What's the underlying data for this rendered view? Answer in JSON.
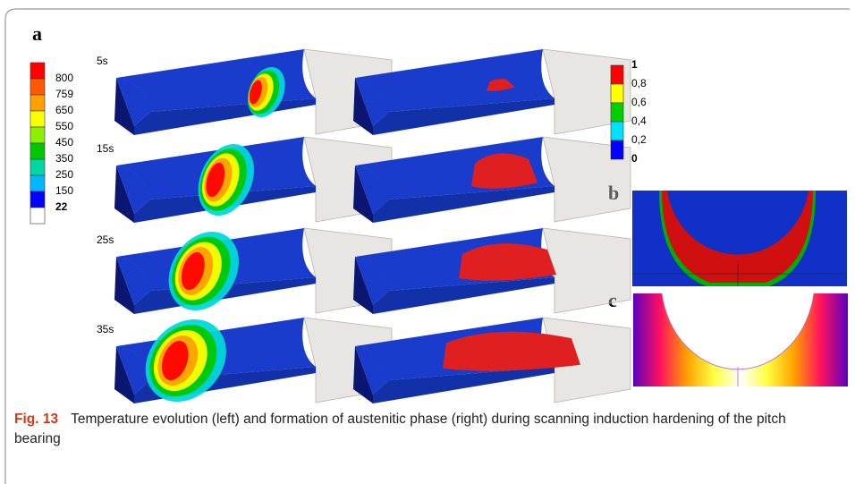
{
  "panel_labels": [
    "a",
    "b",
    "c"
  ],
  "time_labels": [
    "5s",
    "15s",
    "25s",
    "35s"
  ],
  "temperature_legend": {
    "labels": [
      "800",
      "759",
      "650",
      "550",
      "450",
      "350",
      "250",
      "150",
      "22"
    ],
    "colors": [
      "#ff0000",
      "#ff5a00",
      "#ffa000",
      "#ffff00",
      "#8cf000",
      "#00c800",
      "#00d8a0",
      "#00b8ff",
      "#0000ff",
      "#ffffff"
    ]
  },
  "phase_legend": {
    "labels": [
      "1",
      "0,8",
      "0,6",
      "0,4",
      "0,2",
      "0"
    ],
    "colors": [
      "#ff0000",
      "#ffff00",
      "#00d000",
      "#00e0ff",
      "#0000ff"
    ]
  },
  "caption": {
    "label": "Fig. 13",
    "text": "Temperature evolution (left) and formation of austenitic phase (right) during scanning induction hardening of the pitch bearing"
  }
}
